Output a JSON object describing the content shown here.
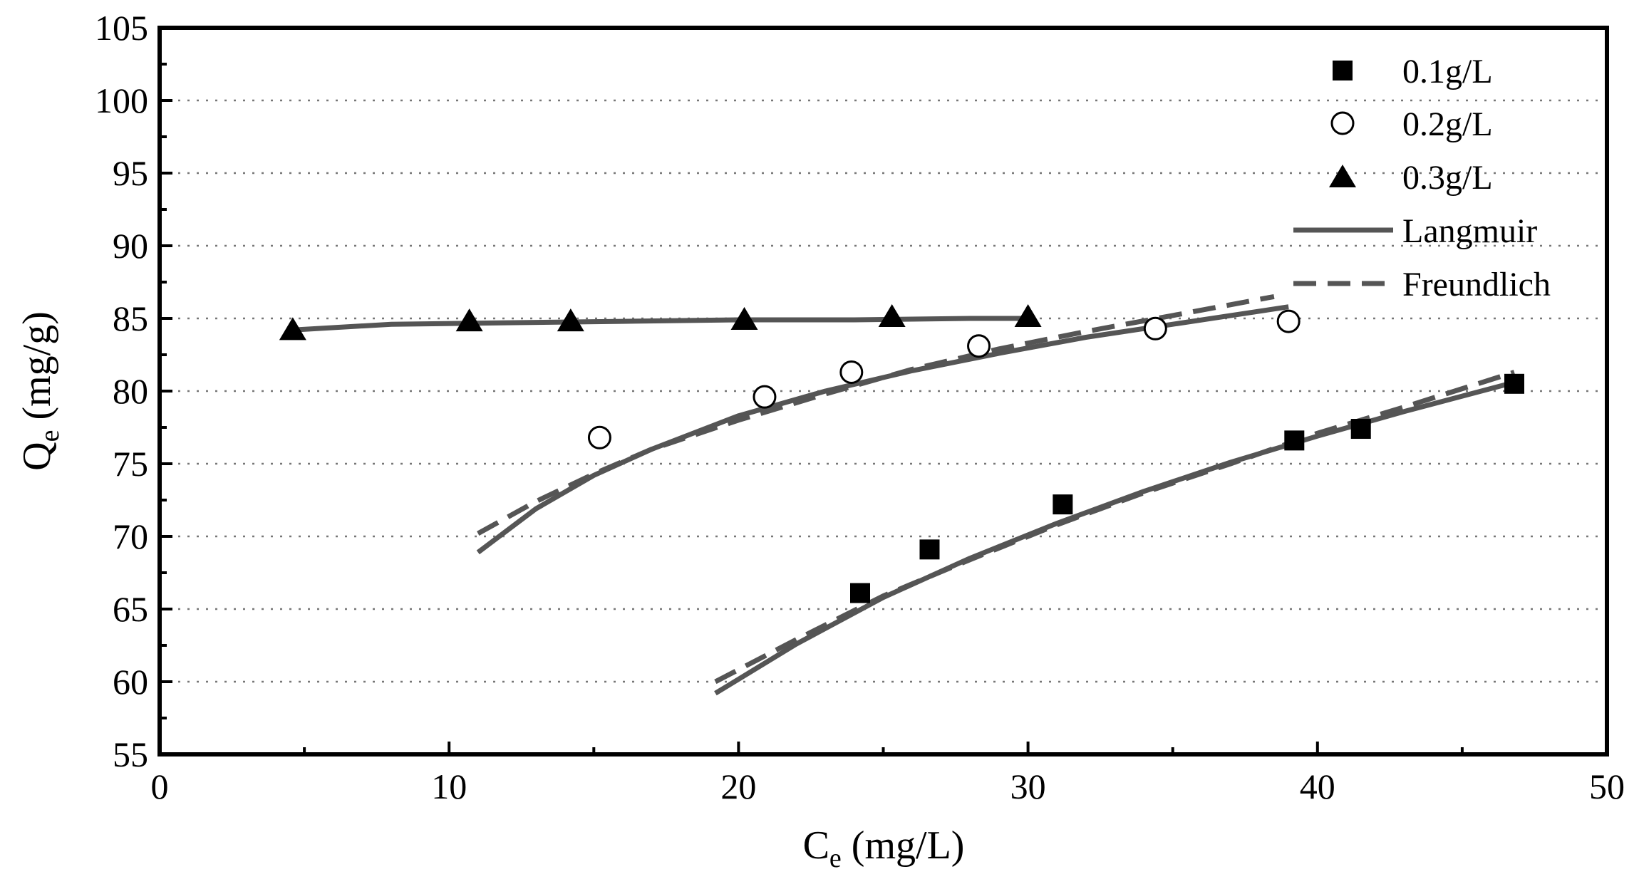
{
  "chart_data": {
    "type": "scatter",
    "title": "",
    "xlabel": {
      "main": "C",
      "sub": "e",
      "unit": " (mg/L)"
    },
    "ylabel": {
      "main": "Q",
      "sub": "e",
      "unit": " (mg/g)"
    },
    "xlim": [
      0,
      50
    ],
    "ylim": [
      55,
      105
    ],
    "xticks": [
      0,
      10,
      20,
      30,
      40,
      50
    ],
    "yticks": [
      55,
      60,
      65,
      70,
      75,
      80,
      85,
      90,
      95,
      100,
      105
    ],
    "xtick_labels": [
      "0",
      "10",
      "20",
      "30",
      "40",
      "50"
    ],
    "ytick_labels": [
      "55",
      "60",
      "65",
      "70",
      "75",
      "80",
      "85",
      "90",
      "95",
      "100",
      "105"
    ],
    "grid": "horizontal dotted",
    "legend_position": "top-right",
    "series": [
      {
        "name": "0.1g/L",
        "marker": "filled-square",
        "x": [
          24.2,
          26.6,
          31.2,
          39.2,
          41.5,
          46.8
        ],
        "y": [
          66.1,
          69.1,
          72.2,
          76.6,
          77.4,
          80.5
        ]
      },
      {
        "name": "0.2g/L",
        "marker": "open-circle",
        "x": [
          15.2,
          20.9,
          23.9,
          28.3,
          34.4,
          39.0
        ],
        "y": [
          76.8,
          79.6,
          81.3,
          83.1,
          84.3,
          84.8
        ]
      },
      {
        "name": "0.3g/L",
        "marker": "filled-triangle",
        "x": [
          4.6,
          10.7,
          14.2,
          20.2,
          25.3,
          30.0
        ],
        "y": [
          84.2,
          84.8,
          84.8,
          84.9,
          85.1,
          85.1
        ]
      }
    ],
    "fits": [
      {
        "name": "Langmuir",
        "style": "solid",
        "curves": [
          {
            "for": "0.1g/L",
            "x": [
              19.2,
              22,
              25,
              28,
              31,
              34,
              37,
              40,
              43,
              46.8
            ],
            "y": [
              59.2,
              62.6,
              65.8,
              68.5,
              70.9,
              73.1,
              75.1,
              76.9,
              78.6,
              80.6
            ]
          },
          {
            "for": "0.2g/L",
            "x": [
              11.0,
              13,
              15,
              17,
              20,
              23,
              26,
              29,
              32,
              35,
              39.0
            ],
            "y": [
              68.9,
              71.9,
              74.2,
              76.0,
              78.3,
              80.0,
              81.4,
              82.6,
              83.7,
              84.6,
              85.8
            ]
          },
          {
            "for": "0.3g/L",
            "x": [
              4.6,
              8,
              12,
              16,
              20,
              24,
              28,
              30.0
            ],
            "y": [
              84.2,
              84.6,
              84.7,
              84.8,
              84.9,
              84.9,
              85.0,
              85.0
            ]
          }
        ]
      },
      {
        "name": "Freundlich",
        "style": "dashed",
        "curves": [
          {
            "for": "0.1g/L",
            "x": [
              19.2,
              22,
              25,
              28,
              31,
              34,
              37,
              40,
              43,
              46.8
            ],
            "y": [
              60.0,
              62.9,
              65.9,
              68.4,
              70.8,
              73.0,
              75.0,
              77.1,
              78.9,
              81.3
            ]
          },
          {
            "for": "0.2g/L",
            "x": [
              11.0,
              13,
              15,
              17,
              20,
              23,
              26,
              29,
              32,
              35,
              38.5
            ],
            "y": [
              70.2,
              72.4,
              74.3,
              76.0,
              78.0,
              79.8,
              81.5,
              82.9,
              84.1,
              85.2,
              86.5
            ]
          }
        ]
      }
    ]
  }
}
